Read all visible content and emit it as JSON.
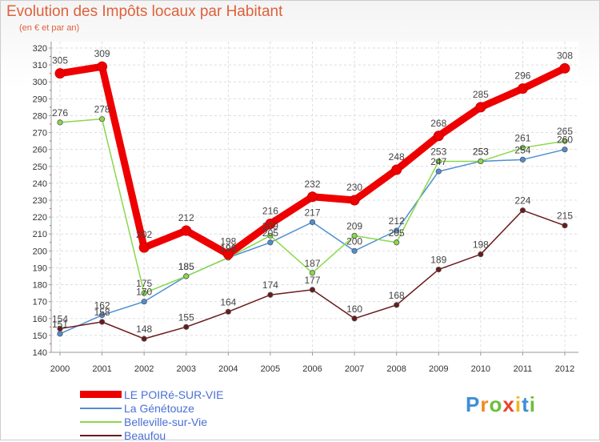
{
  "header": {
    "title": "Evolution des Impôts locaux par Habitant",
    "subtitle": "(en € et par an)"
  },
  "logo": {
    "letters": [
      "P",
      "r",
      "o",
      "x",
      "i",
      "t",
      "i"
    ]
  },
  "chart_data": {
    "type": "line",
    "title": "Evolution des Impôts locaux par Habitant",
    "ylabel": "(en € et par an)",
    "xlabel": "",
    "ylim": [
      140,
      320
    ],
    "ytick_step": 10,
    "grid": true,
    "legend_position": "bottom-left",
    "categories": [
      "2000",
      "2001",
      "2002",
      "2003",
      "2004",
      "2005",
      "2006",
      "2007",
      "2008",
      "2009",
      "2010",
      "2011",
      "2012"
    ],
    "series": [
      {
        "name": "LE POIRé-SUR-VIE",
        "color": "#ee0000",
        "values": [
          305,
          309,
          202,
          212,
          198,
          216,
          232,
          230,
          248,
          268,
          285,
          296,
          308
        ]
      },
      {
        "name": "La Génétouze",
        "color": "#4f8ed0",
        "values": [
          151,
          162,
          170,
          185,
          196,
          205,
          217,
          200,
          212,
          247,
          253,
          254,
          260
        ]
      },
      {
        "name": "Belleville-sur-Vie",
        "color": "#8ad84a",
        "values": [
          276,
          278,
          175,
          185,
          196,
          209,
          187,
          209,
          205,
          253,
          253,
          261,
          265
        ]
      },
      {
        "name": "Beaufou",
        "color": "#6b1a1a",
        "values": [
          154,
          158,
          148,
          155,
          164,
          174,
          177,
          160,
          168,
          189,
          198,
          224,
          215
        ]
      }
    ]
  }
}
